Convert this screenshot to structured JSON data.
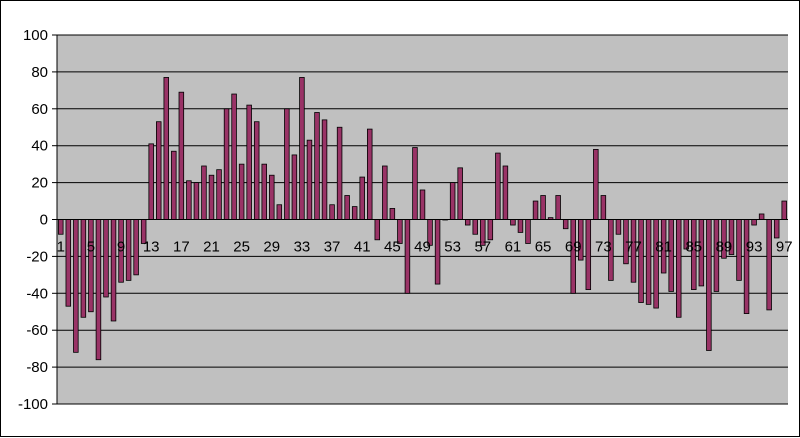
{
  "chart_data": {
    "type": "bar",
    "title": "",
    "xlabel": "",
    "ylabel": "",
    "ylim": [
      -100,
      100
    ],
    "yticks": [
      100,
      80,
      60,
      40,
      20,
      0,
      -20,
      -40,
      -60,
      -80,
      -100
    ],
    "xtick_labels": [
      "1",
      "5",
      "9",
      "13",
      "17",
      "21",
      "25",
      "29",
      "33",
      "37",
      "41",
      "45",
      "49",
      "53",
      "57",
      "61",
      "65",
      "69",
      "73",
      "77",
      "81",
      "85",
      "89",
      "93",
      "97"
    ],
    "grid": true,
    "legend": "none",
    "colors": {
      "plot_background": "#c0c0c0",
      "bar_fill": "#993366",
      "bar_edge": "#000000",
      "gridline": "#000000"
    },
    "categories": [
      1,
      2,
      3,
      4,
      5,
      6,
      7,
      8,
      9,
      10,
      11,
      12,
      13,
      14,
      15,
      16,
      17,
      18,
      19,
      20,
      21,
      22,
      23,
      24,
      25,
      26,
      27,
      28,
      29,
      30,
      31,
      32,
      33,
      34,
      35,
      36,
      37,
      38,
      39,
      40,
      41,
      42,
      43,
      44,
      45,
      46,
      47,
      48,
      49,
      50,
      51,
      52,
      53,
      54,
      55,
      56,
      57,
      58,
      59,
      60,
      61,
      62,
      63,
      64,
      65,
      66,
      67,
      68,
      69,
      70,
      71,
      72,
      73,
      74,
      75,
      76,
      77,
      78,
      79,
      80,
      81,
      82,
      83,
      84,
      85,
      86,
      87,
      88,
      89,
      90,
      91,
      92,
      93,
      94,
      95,
      96,
      97
    ],
    "values": [
      -8,
      -47,
      -72,
      -53,
      -50,
      -76,
      -42,
      -55,
      -34,
      -33,
      -30,
      -13,
      41,
      53,
      77,
      37,
      69,
      21,
      20,
      29,
      24,
      27,
      60,
      68,
      30,
      62,
      53,
      30,
      24,
      8,
      60,
      35,
      77,
      43,
      58,
      54,
      8,
      50,
      13,
      7,
      23,
      49,
      -11,
      29,
      6,
      -13,
      -40,
      39,
      16,
      -14,
      -35,
      0,
      20,
      28,
      -3,
      -8,
      -14,
      -11,
      36,
      29,
      -3,
      -7,
      -13,
      10,
      13,
      1,
      13,
      -5,
      -40,
      -22,
      -38,
      38,
      13,
      -33,
      -8,
      -24,
      -34,
      -45,
      -46,
      -48,
      -29,
      -39,
      -53,
      -16,
      -38,
      -36,
      -71,
      -39,
      -21,
      -19,
      -33,
      -51,
      -3,
      3,
      -49,
      -10,
      10
    ]
  }
}
